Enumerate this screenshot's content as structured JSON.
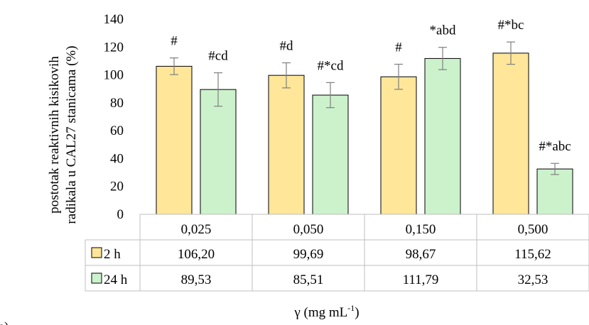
{
  "chart_data": {
    "type": "bar",
    "title": "",
    "ylabel_line1": "postotak reaktivnih kisikovih",
    "ylabel_line2": "radikala u CAL27 stanicama (%)",
    "xlabel": "γ (mg mL",
    "xlabel_sup": "-1",
    "xlabel_end": ")",
    "panel_label": "a)",
    "ylim": [
      0,
      140
    ],
    "yticks": [
      "0",
      "20",
      "40",
      "60",
      "80",
      "100",
      "120",
      "140"
    ],
    "ytick_values": [
      0,
      20,
      40,
      60,
      80,
      100,
      120,
      140
    ],
    "categories": [
      "0,025",
      "0,050",
      "0,150",
      "0,500"
    ],
    "series": [
      {
        "name": "2 h",
        "color": "#FFE699",
        "values": [
          106.2,
          99.69,
          98.67,
          115.62
        ],
        "display_values": [
          "106,20",
          "99,69",
          "98,67",
          "115,62"
        ],
        "errors": [
          6,
          9,
          9,
          8
        ],
        "annotations": [
          "#",
          "#d",
          "#",
          "#*bc"
        ]
      },
      {
        "name": "24 h",
        "color": "#CCF2CC",
        "values": [
          89.53,
          85.51,
          111.79,
          32.53
        ],
        "display_values": [
          "89,53",
          "85,51",
          "111,79",
          "32,53"
        ],
        "errors": [
          12,
          9,
          8,
          4
        ],
        "annotations": [
          "#cd",
          "#*cd",
          "*abd",
          "#*abc"
        ]
      }
    ],
    "grid": false,
    "legend": "data-table"
  }
}
